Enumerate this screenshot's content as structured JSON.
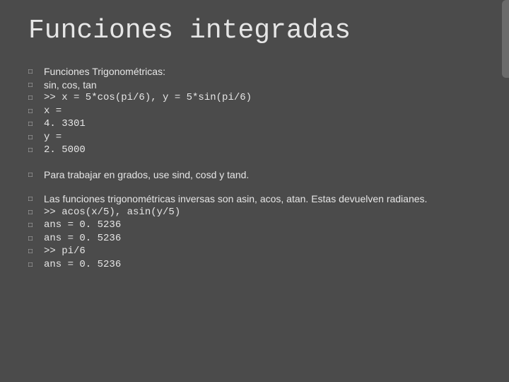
{
  "colors": {
    "background": "#4b4b4b",
    "title_color": "#e6e6e6",
    "text_color": "#e6e6e6",
    "mono_color": "#e6e6e6",
    "marker_color": "#cfcfcf",
    "accent": "#6b6b6b"
  },
  "title": "Funciones integradas",
  "groups": [
    {
      "items": [
        {
          "style": "plain",
          "text": "Funciones Trigonométricas:"
        },
        {
          "style": "plain",
          "text": "sin, cos, tan"
        },
        {
          "style": "mono",
          "text": ">> x = 5*cos(pi/6), y = 5*sin(pi/6)"
        },
        {
          "style": "mono",
          "text": "x ="
        },
        {
          "style": "mono",
          "text": "4. 3301"
        },
        {
          "style": "mono",
          "text": "y ="
        },
        {
          "style": "mono",
          "text": "2. 5000"
        }
      ]
    },
    {
      "items": [
        {
          "style": "plain",
          "text": "Para trabajar en grados, use sind, cosd y tand."
        }
      ]
    },
    {
      "items": [
        {
          "style": "plain",
          "text": "Las funciones trigonométricas inversas son asin, acos, atan. Estas devuelven radianes."
        },
        {
          "style": "mono",
          "text": ">> acos(x/5), asin(y/5)"
        },
        {
          "style": "mono",
          "text": "ans = 0. 5236"
        },
        {
          "style": "mono",
          "text": "ans = 0. 5236"
        },
        {
          "style": "mono",
          "text": ">> pi/6"
        },
        {
          "style": "mono",
          "text": "ans = 0. 5236"
        }
      ]
    }
  ],
  "bullet_marker": "□"
}
